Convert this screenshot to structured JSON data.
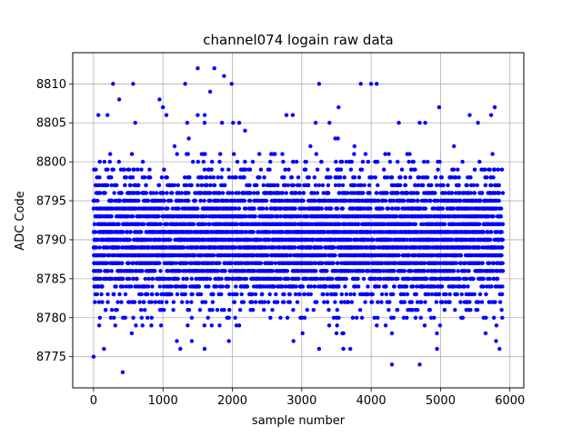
{
  "chart_data": {
    "type": "scatter",
    "title": "channel074 logain raw data",
    "xlabel": "sample number",
    "ylabel": "ADC Code",
    "xlim": [
      -300,
      6200
    ],
    "ylim": [
      8771,
      8814
    ],
    "xticks": [
      0,
      1000,
      2000,
      3000,
      4000,
      5000,
      6000
    ],
    "yticks": [
      8775,
      8780,
      8785,
      8790,
      8795,
      8800,
      8805,
      8810
    ],
    "grid": true,
    "marker_color": "#0000ff",
    "n_samples": 5900,
    "distribution": {
      "integer_values": true,
      "dense_range": [
        8779,
        8801
      ],
      "mean_approx": 8790,
      "sparse_range": [
        8773,
        8812
      ]
    },
    "points": [
      [
        0,
        8775
      ],
      [
        420,
        8773
      ],
      [
        4300,
        8774
      ],
      [
        4700,
        8774
      ],
      [
        150,
        8776
      ],
      [
        1250,
        8776
      ],
      [
        1600,
        8776
      ],
      [
        3250,
        8776
      ],
      [
        3600,
        8776
      ],
      [
        3700,
        8776
      ],
      [
        4950,
        8776
      ],
      [
        5850,
        8776
      ],
      [
        1200,
        8777
      ],
      [
        1950,
        8777
      ],
      [
        2880,
        8777
      ],
      [
        5800,
        8777
      ],
      [
        550,
        8778
      ],
      [
        3500,
        8778
      ],
      [
        3600,
        8778
      ],
      [
        4300,
        8778
      ],
      [
        5650,
        8778
      ],
      [
        280,
        8810
      ],
      [
        570,
        8810
      ],
      [
        1320,
        8810
      ],
      [
        3250,
        8810
      ],
      [
        3850,
        8810
      ],
      [
        4000,
        8810
      ],
      [
        4080,
        8810
      ],
      [
        1990,
        8810
      ],
      [
        1680,
        8809
      ],
      [
        1500,
        8812
      ],
      [
        1740,
        8812
      ],
      [
        1880,
        8811
      ],
      [
        950,
        8808
      ],
      [
        1000,
        8807
      ],
      [
        370,
        8808
      ],
      [
        4980,
        8807
      ],
      [
        5780,
        8807
      ],
      [
        3530,
        8807
      ],
      [
        1050,
        8806
      ],
      [
        1500,
        8806
      ],
      [
        2780,
        8806
      ],
      [
        2870,
        8806
      ],
      [
        5420,
        8806
      ],
      [
        5730,
        8806
      ],
      [
        70,
        8806
      ],
      [
        200,
        8806
      ],
      [
        1600,
        8805
      ],
      [
        1850,
        8805
      ],
      [
        3200,
        8805
      ],
      [
        3400,
        8805
      ],
      [
        4400,
        8805
      ],
      [
        4700,
        8805
      ],
      [
        4780,
        8805
      ],
      [
        5540,
        8805
      ],
      [
        600,
        8805
      ],
      [
        1350,
        8805
      ],
      [
        2100,
        8805
      ]
    ]
  }
}
